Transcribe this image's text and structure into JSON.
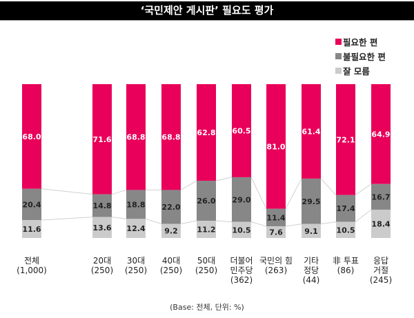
{
  "chart_data": {
    "type": "bar",
    "stacked": true,
    "percent": true,
    "title": "‘국민제안 게시판’ 필요도 평가",
    "note": "(Base: 전체, 단위: %)",
    "legend_position": "top-right",
    "categories": [
      "전체\n(1,000)",
      "20대\n(250)",
      "30대\n(250)",
      "40대\n(250)",
      "50대\n(250)",
      "더불어\n민주당\n(362)",
      "국민의 힘\n(263)",
      "기타\n정당\n(44)",
      "非 투표\n(86)",
      "응답\n거절\n(245)"
    ],
    "series": [
      {
        "name": "필요한 편",
        "color": "#e8005a",
        "values": [
          68.0,
          71.6,
          68.8,
          68.8,
          62.8,
          60.5,
          81.0,
          61.4,
          72.1,
          64.9
        ]
      },
      {
        "name": "불필요한 편",
        "color": "#878787",
        "values": [
          20.4,
          14.8,
          18.8,
          22.0,
          26.0,
          29.0,
          11.4,
          29.5,
          17.4,
          16.7
        ]
      },
      {
        "name": "잘 모름",
        "color": "#cbcbcb",
        "values": [
          11.6,
          13.6,
          12.4,
          9.2,
          11.2,
          10.5,
          7.6,
          9.1,
          10.5,
          18.4
        ]
      }
    ],
    "ylim": [
      0,
      100
    ]
  }
}
